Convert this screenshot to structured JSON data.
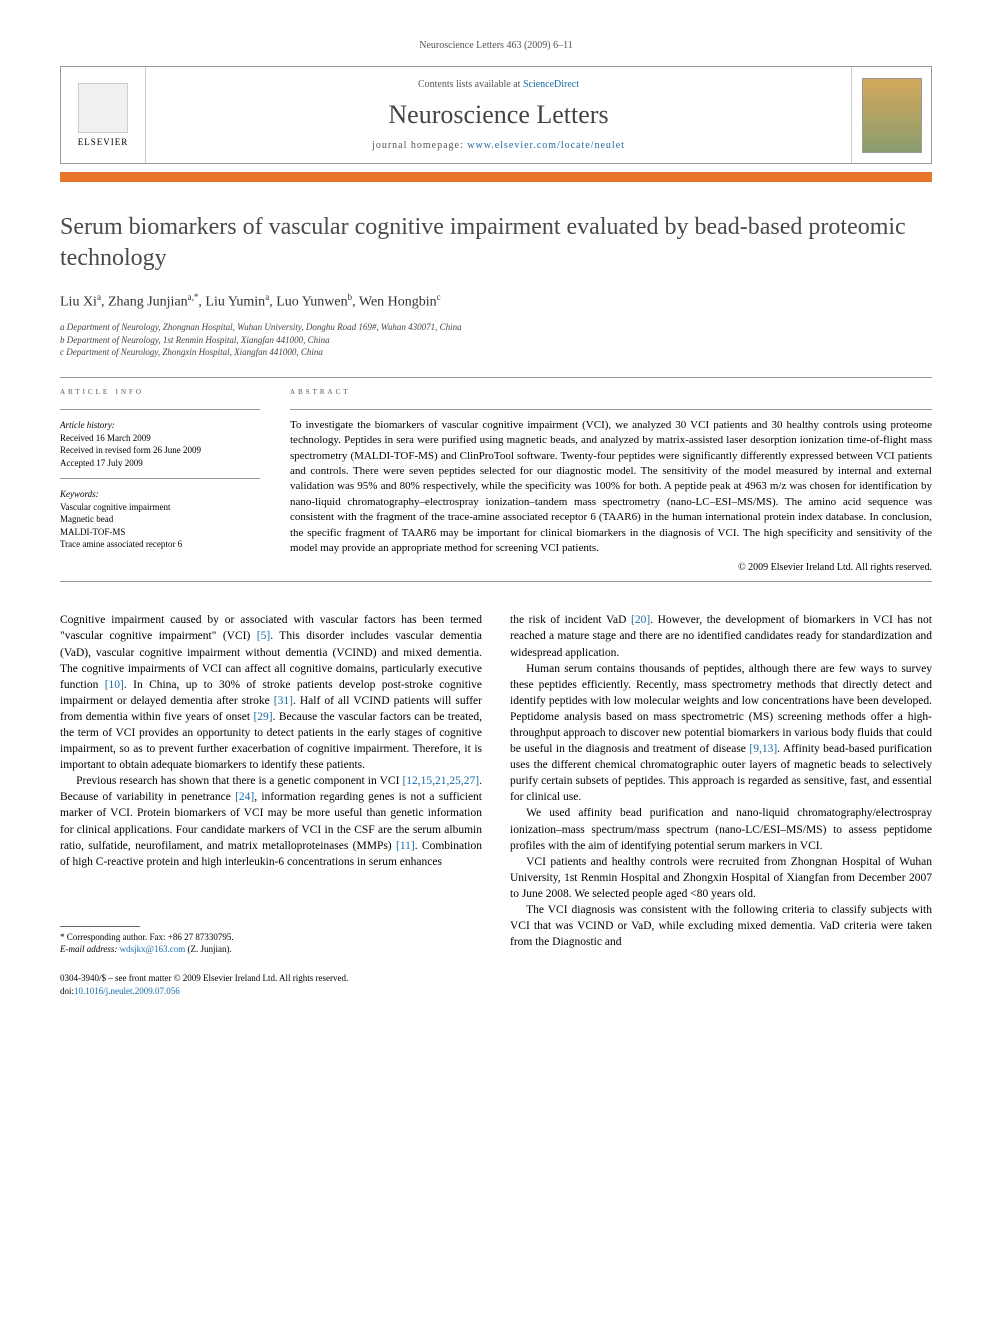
{
  "header": {
    "citation": "Neuroscience Letters 463 (2009) 6–11",
    "contents_prefix": "Contents lists available at ",
    "contents_link": "ScienceDirect",
    "journal_name": "Neuroscience Letters",
    "homepage_prefix": "journal homepage: ",
    "homepage_url": "www.elsevier.com/locate/neulet",
    "elsevier": "ELSEVIER"
  },
  "title": "Serum biomarkers of vascular cognitive impairment evaluated by bead-based proteomic technology",
  "authors": {
    "a1_name": "Liu Xi",
    "a1_sup": "a",
    "a2_name": "Zhang Junjian",
    "a2_sup": "a,*",
    "a3_name": "Liu Yumin",
    "a3_sup": "a",
    "a4_name": "Luo Yunwen",
    "a4_sup": "b",
    "a5_name": "Wen Hongbin",
    "a5_sup": "c"
  },
  "affiliations": {
    "a": "a Department of Neurology, Zhongnan Hospital, Wuhan University, Donghu Road 169#, Wuhan 430071, China",
    "b": "b Department of Neurology, 1st Renmin Hospital, Xiangfan 441000, China",
    "c": "c Department of Neurology, Zhongxin Hospital, Xiangfan 441000, China"
  },
  "info": {
    "heading": "article info",
    "history_label": "Article history:",
    "received": "Received 16 March 2009",
    "revised": "Received in revised form 26 June 2009",
    "accepted": "Accepted 17 July 2009",
    "keywords_label": "Keywords:",
    "kw1": "Vascular cognitive impairment",
    "kw2": "Magnetic bead",
    "kw3": "MALDI-TOF-MS",
    "kw4": "Trace amine associated receptor 6"
  },
  "abstract": {
    "heading": "abstract",
    "text": "To investigate the biomarkers of vascular cognitive impairment (VCI), we analyzed 30 VCI patients and 30 healthy controls using proteome technology. Peptides in sera were purified using magnetic beads, and analyzed by matrix-assisted laser desorption ionization time-of-flight mass spectrometry (MALDI-TOF-MS) and ClinProTool software. Twenty-four peptides were significantly differently expressed between VCI patients and controls. There were seven peptides selected for our diagnostic model. The sensitivity of the model measured by internal and external validation was 95% and 80% respectively, while the specificity was 100% for both. A peptide peak at 4963 m/z was chosen for identification by nano-liquid chromatography–electrospray ionization–tandem mass spectrometry (nano-LC–ESI–MS/MS). The amino acid sequence was consistent with the fragment of the trace-amine associated receptor 6 (TAAR6) in the human international protein index database. In conclusion, the specific fragment of TAAR6 may be important for clinical biomarkers in the diagnosis of VCI. The high specificity and sensitivity of the model may provide an appropriate method for screening VCI patients.",
    "copyright": "© 2009 Elsevier Ireland Ltd. All rights reserved."
  },
  "body": {
    "p1a": "Cognitive impairment caused by or associated with vascular factors has been termed \"vascular cognitive impairment\" (VCI) ",
    "p1_ref1": "[5]",
    "p1b": ". This disorder includes vascular dementia (VaD), vascular cognitive impairment without dementia (VCIND) and mixed dementia. The cognitive impairments of VCI can affect all cognitive domains, particularly executive function ",
    "p1_ref2": "[10]",
    "p1c": ". In China, up to 30% of stroke patients develop post-stroke cognitive impairment or delayed dementia after stroke ",
    "p1_ref3": "[31]",
    "p1d": ". Half of all VCIND patients will suffer from dementia within five years of onset ",
    "p1_ref4": "[29]",
    "p1e": ". Because the vascular factors can be treated, the term of VCI provides an opportunity to detect patients in the early stages of cognitive impairment, so as to prevent further exacerbation of cognitive impairment. Therefore, it is important to obtain adequate biomarkers to identify these patients.",
    "p2a": "Previous research has shown that there is a genetic component in VCI ",
    "p2_ref1": "[12,15,21,25,27]",
    "p2b": ". Because of variability in penetrance ",
    "p2_ref2": "[24]",
    "p2c": ", information regarding genes is not a sufficient marker of VCI. Protein biomarkers of VCI may be more useful than genetic information for clinical applications. Four candidate markers of VCI in the CSF are the serum albumin ratio, sulfatide, neurofilament, and matrix metalloproteinases (MMPs) ",
    "p2_ref3": "[11]",
    "p2d": ". Combination of high C-reactive protein and high interleukin-6 concentrations in serum enhances",
    "p3a": "the risk of incident VaD ",
    "p3_ref1": "[20]",
    "p3b": ". However, the development of biomarkers in VCI has not reached a mature stage and there are no identified candidates ready for standardization and widespread application.",
    "p4a": "Human serum contains thousands of peptides, although there are few ways to survey these peptides efficiently. Recently, mass spectrometry methods that directly detect and identify peptides with low molecular weights and low concentrations have been developed. Peptidome analysis based on mass spectrometric (MS) screening methods offer a high-throughput approach to discover new potential biomarkers in various body fluids that could be useful in the diagnosis and treatment of disease ",
    "p4_ref1": "[9,13]",
    "p4b": ". Affinity bead-based purification uses the different chemical chromatographic outer layers of magnetic beads to selectively purify certain subsets of peptides. This approach is regarded as sensitive, fast, and essential for clinical use.",
    "p5": "We used affinity bead purification and nano-liquid chromatography/electrospray ionization–mass spectrum/mass spectrum (nano-LC/ESI–MS/MS) to assess peptidome profiles with the aim of identifying potential serum markers in VCI.",
    "p6": "VCI patients and healthy controls were recruited from Zhongnan Hospital of Wuhan University, 1st Renmin Hospital and Zhongxin Hospital of Xiangfan from December 2007 to June 2008. We selected people aged <80 years old.",
    "p7": "The VCI diagnosis was consistent with the following criteria to classify subjects with VCI that was VCIND or VaD, while excluding mixed dementia. VaD criteria were taken from the Diagnostic and"
  },
  "footnote": {
    "corresponding": "* Corresponding author. Fax: +86 27 87330795.",
    "email_label": "E-mail address: ",
    "email": "wdsjkx@163.com",
    "email_suffix": " (Z. Junjian)."
  },
  "footer": {
    "issn": "0304-3940/$ – see front matter © 2009 Elsevier Ireland Ltd. All rights reserved.",
    "doi_label": "doi:",
    "doi": "10.1016/j.neulet.2009.07.056"
  }
}
